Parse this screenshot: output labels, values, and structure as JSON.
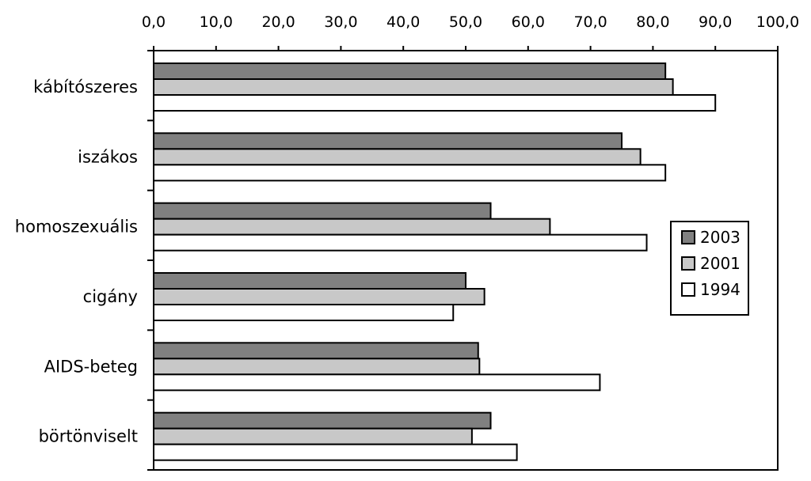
{
  "chart_data": {
    "type": "bar",
    "orientation": "horizontal",
    "categories": [
      "kábítószeres",
      "iszákos",
      "homoszexuális",
      "cigány",
      "AIDS-beteg",
      "börtönviselt"
    ],
    "series": [
      {
        "name": "2003",
        "color": "#808080",
        "values": [
          82.0,
          75.0,
          54.0,
          50.0,
          52.0,
          54.0
        ]
      },
      {
        "name": "2001",
        "color": "#c8c8c8",
        "values": [
          83.2,
          78.0,
          63.5,
          53.0,
          52.2,
          51.0
        ]
      },
      {
        "name": "1994",
        "color": "#ffffff",
        "values": [
          90.0,
          82.0,
          79.0,
          48.0,
          71.5,
          58.2
        ]
      }
    ],
    "xlim": [
      0,
      100
    ],
    "xticks": [
      "0,0",
      "10,0",
      "20,0",
      "30,0",
      "40,0",
      "50,0",
      "60,0",
      "70,0",
      "80,0",
      "90,0",
      "100,0"
    ],
    "title": "",
    "xlabel": "",
    "ylabel": "",
    "grid": false,
    "legend": "right"
  }
}
